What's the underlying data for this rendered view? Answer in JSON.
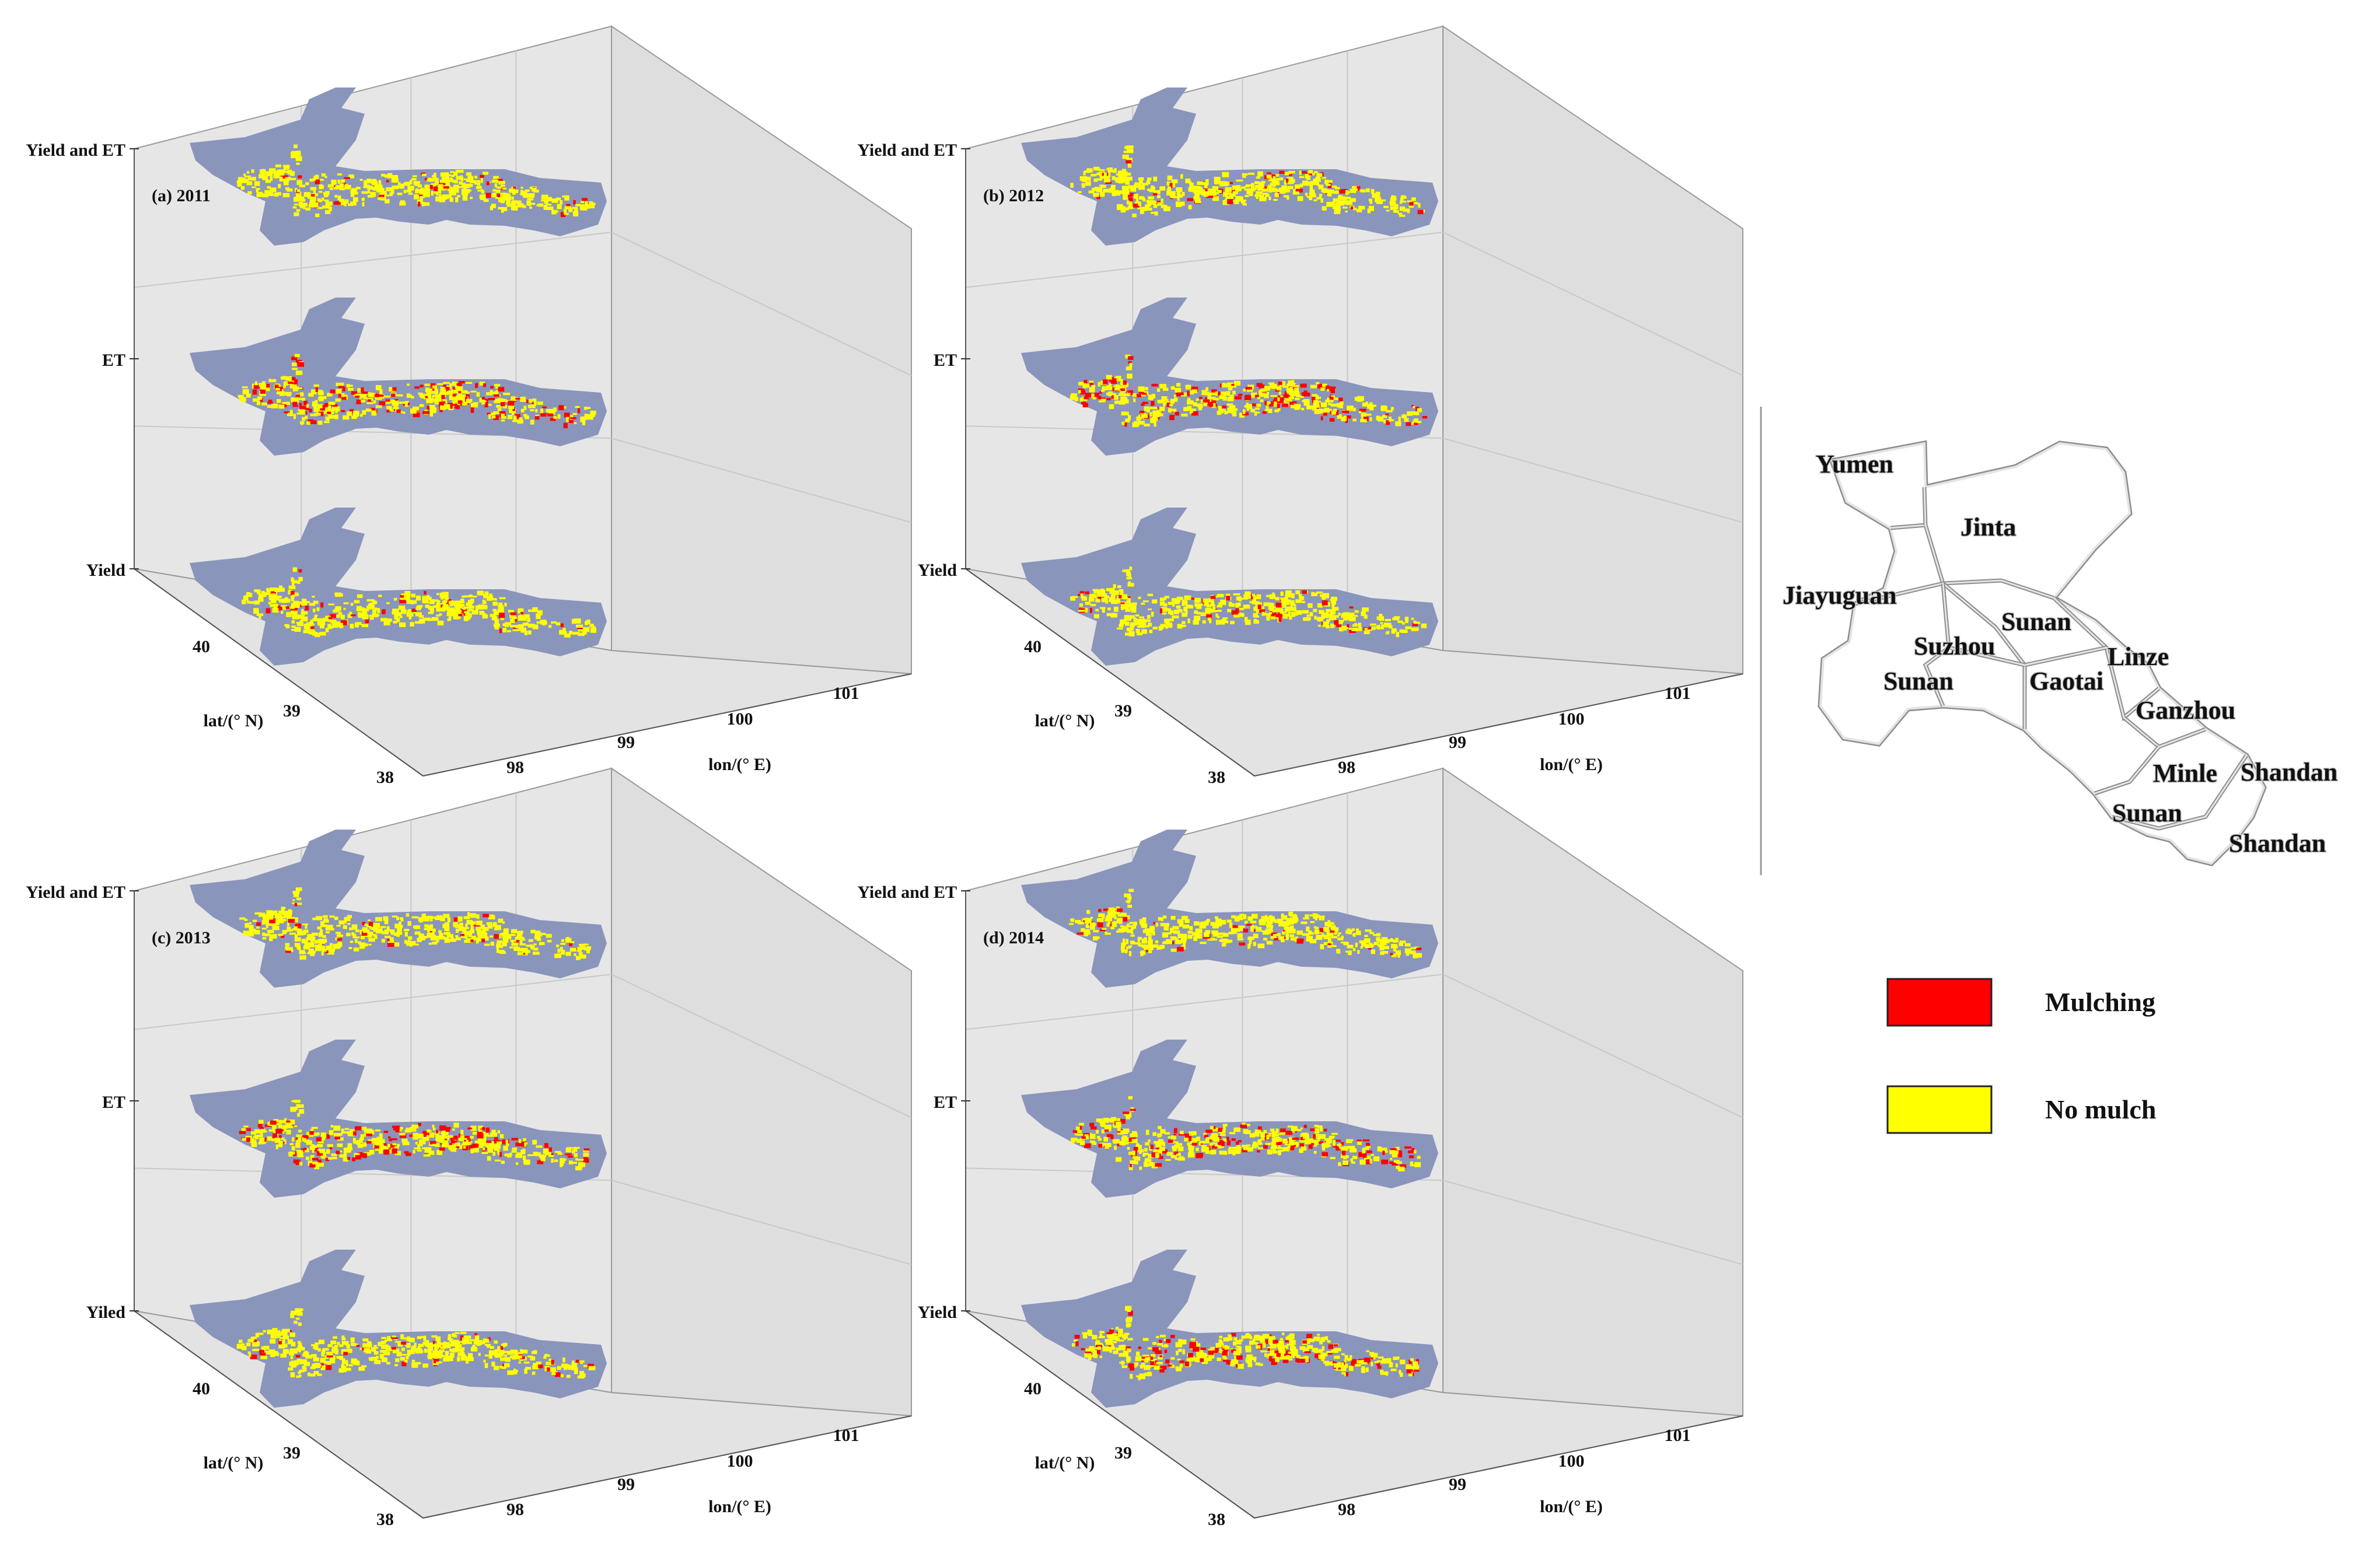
{
  "chart_data": [
    {
      "type": "heatmap",
      "panel_label": "(a) 2011",
      "layers": [
        "Yield and ET",
        "ET",
        "Yield"
      ],
      "xlabel": "lon/(° E)",
      "ylabel": "lat/(° N)",
      "xticks": [
        "98",
        "99",
        "100",
        "101"
      ],
      "yticks": [
        "38",
        "39",
        "40"
      ],
      "color_classes": [
        "Mulching",
        "No mulch"
      ]
    },
    {
      "type": "heatmap",
      "panel_label": "(b) 2012",
      "layers": [
        "Yield and ET",
        "ET",
        "Yield"
      ],
      "xlabel": "lon/(° E)",
      "ylabel": "lat/(° N)",
      "xticks": [
        "98",
        "99",
        "100",
        "101"
      ],
      "yticks": [
        "38",
        "39",
        "40"
      ],
      "color_classes": [
        "Mulching",
        "No mulch"
      ]
    },
    {
      "type": "heatmap",
      "panel_label": "(c) 2013",
      "layers": [
        "Yield and ET",
        "ET",
        "Yiled"
      ],
      "xlabel": "lon/(° E)",
      "ylabel": "lat/(° N)",
      "xticks": [
        "98",
        "99",
        "100",
        "101"
      ],
      "yticks": [
        "38",
        "39",
        "40"
      ],
      "color_classes": [
        "Mulching",
        "No mulch"
      ]
    },
    {
      "type": "heatmap",
      "panel_label": "(d) 2014",
      "layers": [
        "Yield and ET",
        "ET",
        "Yield"
      ],
      "xlabel": "lon/(° E)",
      "ylabel": "lat/(° N)",
      "xticks": [
        "98",
        "99",
        "100",
        "101"
      ],
      "yticks": [
        "38",
        "39",
        "40"
      ],
      "color_classes": [
        "Mulching",
        "No mulch"
      ]
    }
  ],
  "region_map": {
    "districts": [
      "Yumen",
      "Jinta",
      "Jiayuguan",
      "Sunan",
      "Suzhou",
      "Gaotai",
      "Linze",
      "Sunan",
      "Ganzhou",
      "Minle",
      "Shandan",
      "Sunan",
      "Shandan"
    ]
  },
  "legend": {
    "items": [
      {
        "label": "Mulching",
        "color": "#ff0000"
      },
      {
        "label": "No mulch",
        "color": "#ffff00"
      }
    ]
  },
  "colors": {
    "region_fill": "#8a95bc",
    "pane": "#e6e6e6",
    "grid": "#c8c8c8"
  }
}
